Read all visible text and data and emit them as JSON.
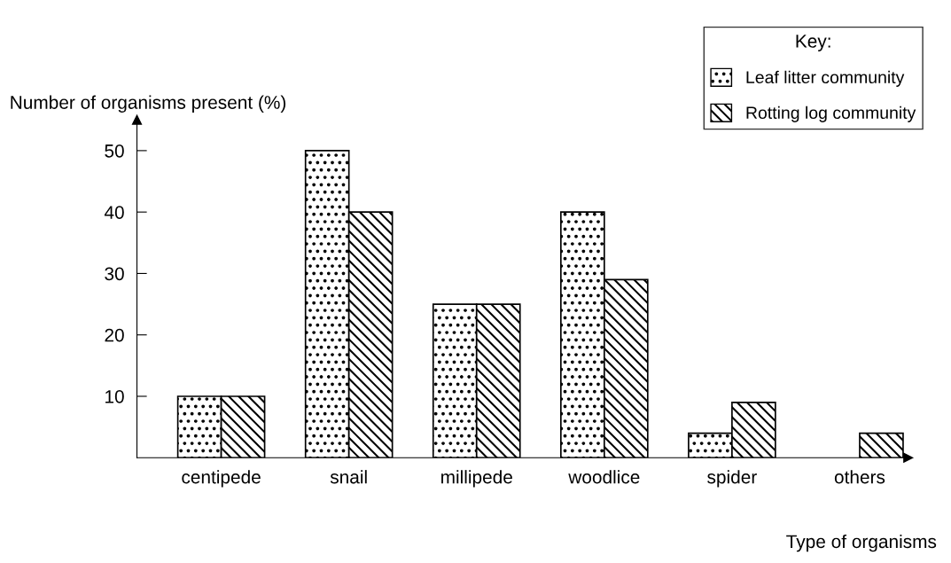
{
  "chart_data": {
    "type": "bar",
    "xlabel": "Type of organisms",
    "ylabel": "Number of organisms present (%)",
    "legend_title": "Key:",
    "categories": [
      "centipede",
      "snail",
      "millipede",
      "woodlice",
      "spider",
      "others"
    ],
    "series": [
      {
        "name": "Leaf litter community",
        "color": "#000000",
        "values": [
          10,
          50,
          25,
          40,
          4,
          null
        ]
      },
      {
        "name": "Rotting log community",
        "color": "#000000",
        "values": [
          10,
          40,
          25,
          29,
          9,
          4
        ]
      }
    ],
    "ylim": [
      0,
      55
    ],
    "yticks": [
      10,
      20,
      30,
      40,
      50
    ],
    "grid": false,
    "legend": "top right"
  }
}
